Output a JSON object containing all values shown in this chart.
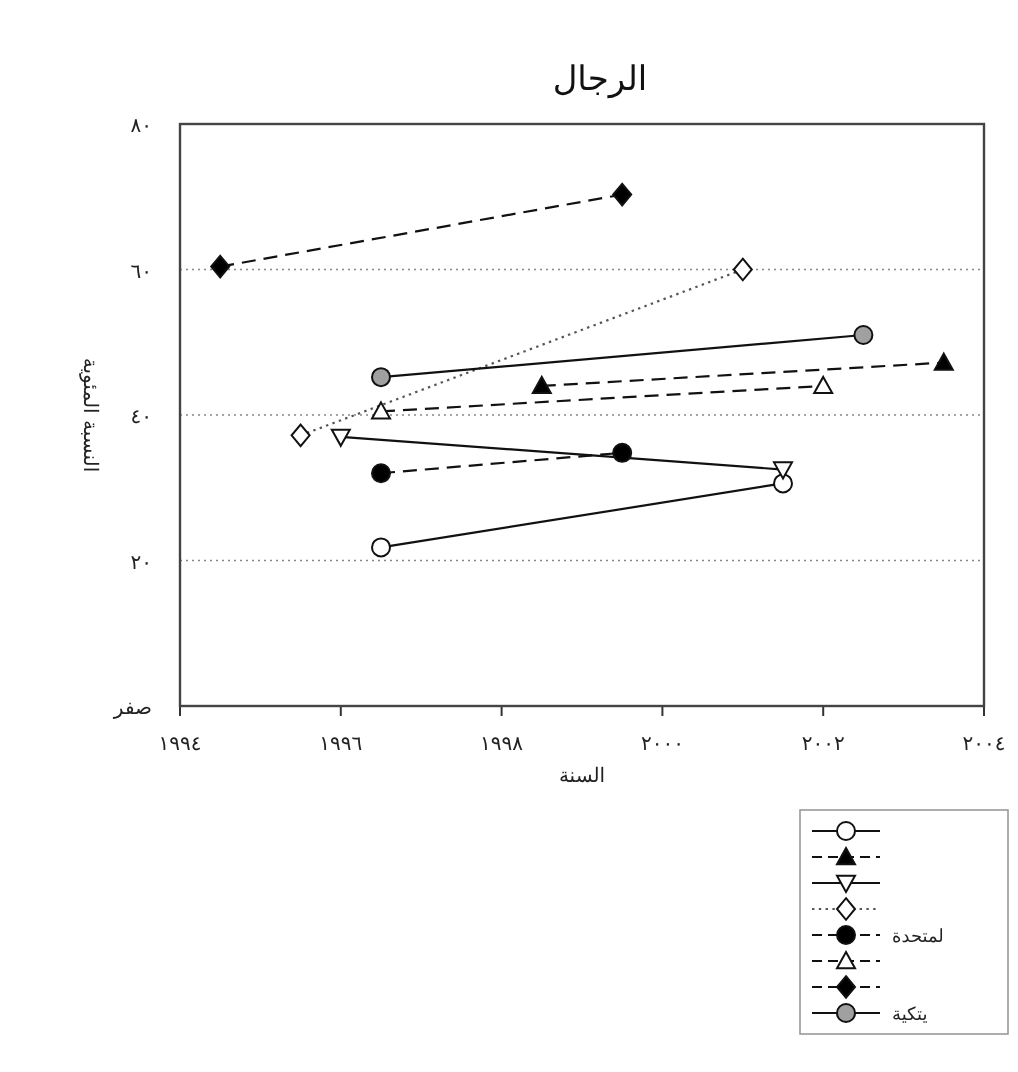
{
  "chart_data": {
    "type": "line",
    "title": "الرجال",
    "xlabel": "السنة",
    "ylabel": "النسبة المئوية",
    "xlim": [
      1994,
      2004
    ],
    "ylim": [
      0,
      80
    ],
    "xticks": [
      {
        "value": 1994,
        "label": "١٩٩٤"
      },
      {
        "value": 1996,
        "label": "١٩٩٦"
      },
      {
        "value": 1998,
        "label": "١٩٩٨"
      },
      {
        "value": 2000,
        "label": "٢٠٠٠"
      },
      {
        "value": 2002,
        "label": "٢٠٠٢"
      },
      {
        "value": 2004,
        "label": "٢٠٠٤"
      }
    ],
    "yticks": [
      {
        "value": 0,
        "label": "صفر"
      },
      {
        "value": 20,
        "label": "٢٠"
      },
      {
        "value": 40,
        "label": "٤٠"
      },
      {
        "value": 60,
        "label": "٦٠"
      },
      {
        "value": 80,
        "label": "٨٠"
      }
    ],
    "grid": "y",
    "legend": "bottom right",
    "series": [
      {
        "color": "#ffffff",
        "marker": "circle",
        "line_style": "solid",
        "x": [
          1996.5,
          2001.5
        ],
        "values": [
          21.8,
          30.6
        ]
      },
      {
        "color": "#000000",
        "marker": "triangle",
        "line_style": "dashed",
        "x": [
          1998.5,
          2003.5
        ],
        "values": [
          44,
          47.2
        ]
      },
      {
        "color": "#ffffff",
        "marker": "triangle_down",
        "line_style": "solid",
        "x": [
          1996,
          2001.5
        ],
        "values": [
          37,
          32.5
        ]
      },
      {
        "color": "#ffffff",
        "marker": "diamond",
        "line_style": "dotted",
        "x": [
          1995.5,
          2001
        ],
        "values": [
          37.2,
          60
        ]
      },
      {
        "name": "لمتحدة",
        "color": "#000000",
        "marker": "circle",
        "line_style": "dashed",
        "x": [
          1996.5,
          1999.5
        ],
        "values": [
          32,
          34.8
        ]
      },
      {
        "color": "#ffffff",
        "marker": "triangle",
        "line_style": "dashed",
        "x": [
          1996.5,
          2002
        ],
        "values": [
          40.5,
          44
        ]
      },
      {
        "color": "#000000",
        "marker": "diamond",
        "line_style": "dashed",
        "x": [
          1994.5,
          1999.5
        ],
        "values": [
          60.4,
          70.3
        ]
      },
      {
        "name": "يتكية",
        "color": "#a0a0a0",
        "marker": "circle",
        "line_style": "solid",
        "x": [
          1996.5,
          2002.5
        ],
        "values": [
          45.2,
          51
        ]
      }
    ]
  }
}
